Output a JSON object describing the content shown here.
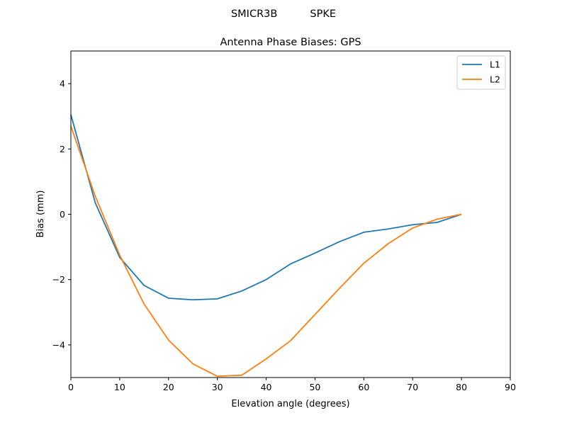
{
  "chart_data": {
    "type": "line",
    "suptitle": "SMICR3B          SPKE",
    "title": "Antenna Phase Biases: GPS",
    "xlabel": "Elevation angle (degrees)",
    "ylabel": "Bias (mm)",
    "xlim": [
      0,
      90
    ],
    "ylim": [
      -5,
      5
    ],
    "xticks": [
      0,
      10,
      20,
      30,
      40,
      50,
      60,
      70,
      80,
      90
    ],
    "yticks": [
      -4,
      -2,
      0,
      2,
      4
    ],
    "grid": false,
    "legend_position": "top-right",
    "x": [
      0,
      5,
      10,
      15,
      20,
      25,
      30,
      35,
      40,
      45,
      50,
      55,
      60,
      65,
      70,
      75,
      80
    ],
    "series": [
      {
        "name": "L1",
        "color": "#1f77b4",
        "values": [
          3.05,
          0.35,
          -1.32,
          -2.18,
          -2.57,
          -2.62,
          -2.59,
          -2.35,
          -2.0,
          -1.52,
          -1.19,
          -0.84,
          -0.55,
          -0.45,
          -0.32,
          -0.25,
          0.0
        ]
      },
      {
        "name": "L2",
        "color": "#ff7f0e",
        "values": [
          2.7,
          0.55,
          -1.25,
          -2.75,
          -3.85,
          -4.58,
          -4.96,
          -4.93,
          -4.43,
          -3.87,
          -3.07,
          -2.27,
          -1.5,
          -0.9,
          -0.42,
          -0.15,
          0.0
        ]
      }
    ]
  }
}
